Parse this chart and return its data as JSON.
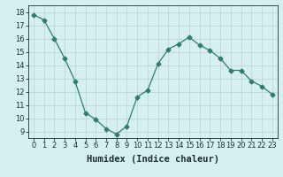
{
  "x": [
    0,
    1,
    2,
    3,
    4,
    5,
    6,
    7,
    8,
    9,
    10,
    11,
    12,
    13,
    14,
    15,
    16,
    17,
    18,
    19,
    20,
    21,
    22,
    23
  ],
  "y": [
    17.8,
    17.4,
    16.0,
    14.5,
    12.8,
    10.4,
    9.9,
    9.2,
    8.8,
    9.4,
    11.6,
    12.1,
    14.1,
    15.2,
    15.6,
    16.1,
    15.5,
    15.1,
    14.5,
    13.6,
    13.6,
    12.8,
    12.4,
    11.8
  ],
  "line_color": "#2e7d6e",
  "marker": "D",
  "marker_size": 2.5,
  "bg_color": "#d6f0ef",
  "grid_color": "#c0d8d4",
  "xlabel": "Humidex (Indice chaleur)",
  "ylabel_ticks": [
    9,
    10,
    11,
    12,
    13,
    14,
    15,
    16,
    17,
    18
  ],
  "xlim": [
    -0.5,
    23.5
  ],
  "ylim": [
    8.5,
    18.5
  ],
  "xticks": [
    0,
    1,
    2,
    3,
    4,
    5,
    6,
    7,
    8,
    9,
    10,
    11,
    12,
    13,
    14,
    15,
    16,
    17,
    18,
    19,
    20,
    21,
    22,
    23
  ],
  "tick_fontsize": 6,
  "xlabel_fontsize": 7.5,
  "label_color": "#1a3030"
}
